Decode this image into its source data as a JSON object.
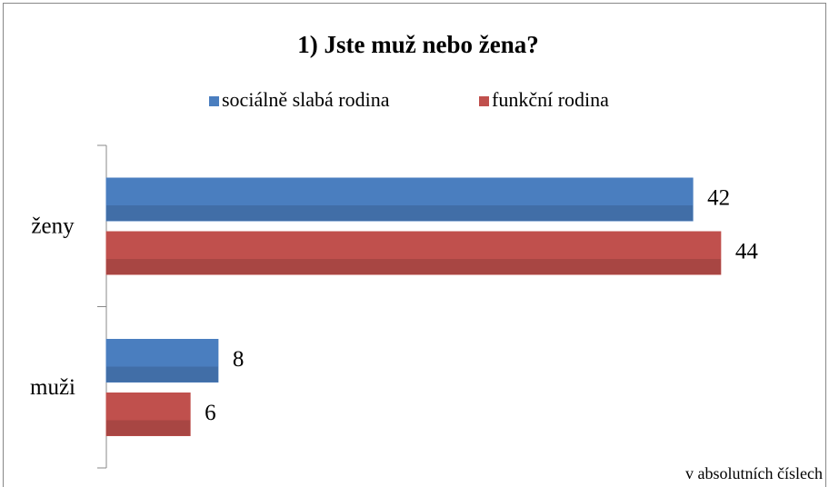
{
  "chart_data": {
    "type": "bar",
    "orientation": "horizontal",
    "title": "1) Jste muž nebo žena?",
    "categories": [
      "ženy",
      "muži"
    ],
    "series": [
      {
        "name": "sociálně slabá rodina",
        "color": "#4a7ebf",
        "values": [
          42,
          8
        ]
      },
      {
        "name": "funkční rodina",
        "color": "#c0504d",
        "values": [
          44,
          6
        ]
      }
    ],
    "legend": "top",
    "annotation": "v absolutních číslech"
  }
}
